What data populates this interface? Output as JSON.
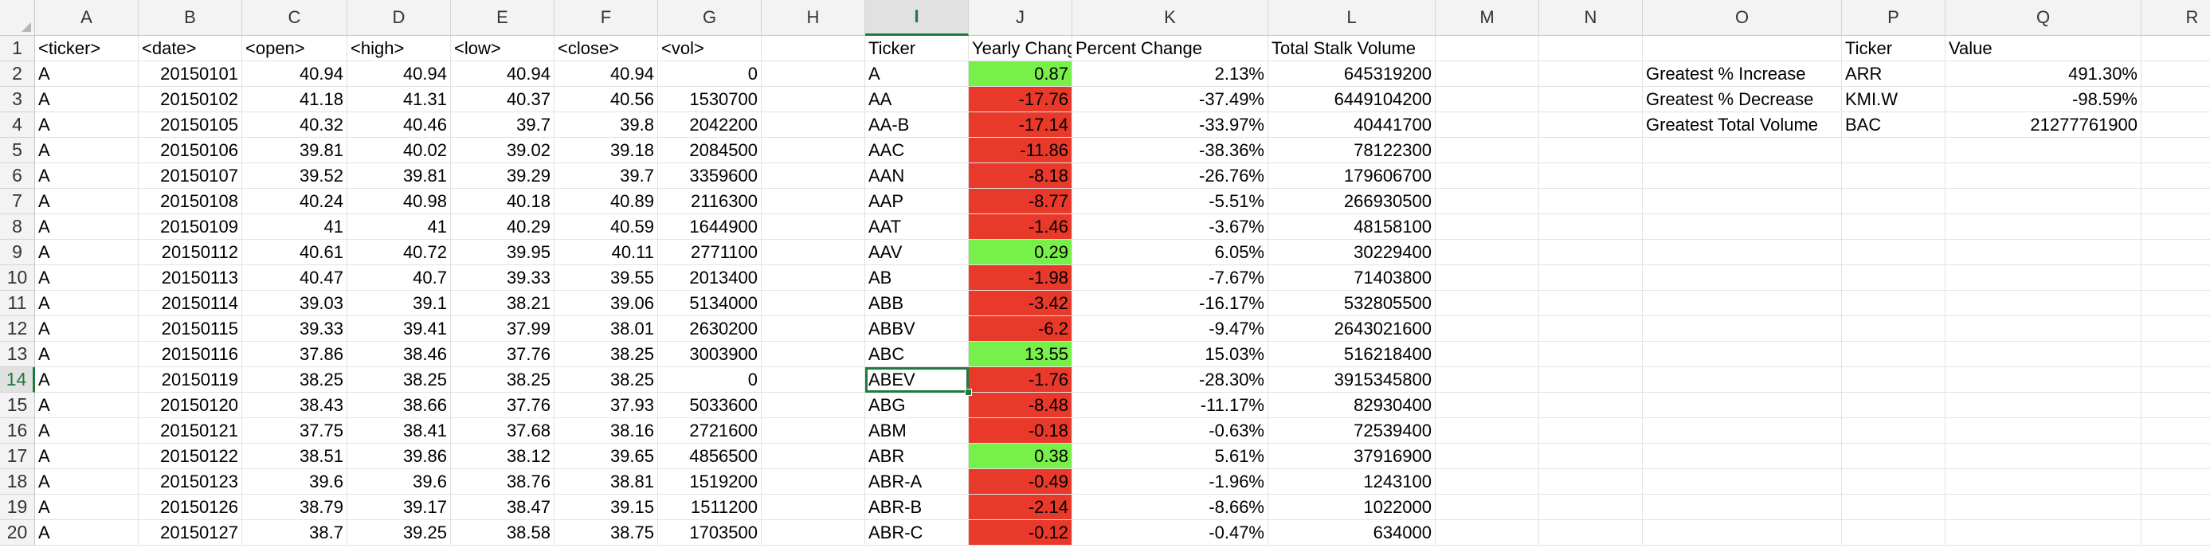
{
  "columns": [
    "A",
    "B",
    "C",
    "D",
    "E",
    "F",
    "G",
    "H",
    "I",
    "J",
    "K",
    "L",
    "M",
    "N",
    "O",
    "P",
    "Q",
    "R"
  ],
  "rows": [
    [
      "<ticker>",
      "<date>",
      "<open>",
      "<high>",
      "<low>",
      "<close>",
      "<vol>",
      "",
      "Ticker",
      "Yearly Change",
      "Percent Change",
      "Total Stalk Volume",
      "",
      "",
      "",
      "Ticker",
      "Value",
      ""
    ],
    [
      "A",
      "20150101",
      "40.94",
      "40.94",
      "40.94",
      "40.94",
      "0",
      "",
      "A",
      "0.87",
      "2.13%",
      "645319200",
      "",
      "",
      "Greatest % Increase",
      "ARR",
      "491.30%",
      ""
    ],
    [
      "A",
      "20150102",
      "41.18",
      "41.31",
      "40.37",
      "40.56",
      "1530700",
      "",
      "AA",
      "-17.76",
      "-37.49%",
      "6449104200",
      "",
      "",
      "Greatest % Decrease",
      "KMI.W",
      "-98.59%",
      ""
    ],
    [
      "A",
      "20150105",
      "40.32",
      "40.46",
      "39.7",
      "39.8",
      "2042200",
      "",
      "AA-B",
      "-17.14",
      "-33.97%",
      "40441700",
      "",
      "",
      "Greatest Total Volume",
      "BAC",
      "21277761900",
      ""
    ],
    [
      "A",
      "20150106",
      "39.81",
      "40.02",
      "39.02",
      "39.18",
      "2084500",
      "",
      "AAC",
      "-11.86",
      "-38.36%",
      "78122300",
      "",
      "",
      "",
      "",
      "",
      ""
    ],
    [
      "A",
      "20150107",
      "39.52",
      "39.81",
      "39.29",
      "39.7",
      "3359600",
      "",
      "AAN",
      "-8.18",
      "-26.76%",
      "179606700",
      "",
      "",
      "",
      "",
      "",
      ""
    ],
    [
      "A",
      "20150108",
      "40.24",
      "40.98",
      "40.18",
      "40.89",
      "2116300",
      "",
      "AAP",
      "-8.77",
      "-5.51%",
      "266930500",
      "",
      "",
      "",
      "",
      "",
      ""
    ],
    [
      "A",
      "20150109",
      "41",
      "41",
      "40.29",
      "40.59",
      "1644900",
      "",
      "AAT",
      "-1.46",
      "-3.67%",
      "48158100",
      "",
      "",
      "",
      "",
      "",
      ""
    ],
    [
      "A",
      "20150112",
      "40.61",
      "40.72",
      "39.95",
      "40.11",
      "2771100",
      "",
      "AAV",
      "0.29",
      "6.05%",
      "30229400",
      "",
      "",
      "",
      "",
      "",
      ""
    ],
    [
      "A",
      "20150113",
      "40.47",
      "40.7",
      "39.33",
      "39.55",
      "2013400",
      "",
      "AB",
      "-1.98",
      "-7.67%",
      "71403800",
      "",
      "",
      "",
      "",
      "",
      ""
    ],
    [
      "A",
      "20150114",
      "39.03",
      "39.1",
      "38.21",
      "39.06",
      "5134000",
      "",
      "ABB",
      "-3.42",
      "-16.17%",
      "532805500",
      "",
      "",
      "",
      "",
      "",
      ""
    ],
    [
      "A",
      "20150115",
      "39.33",
      "39.41",
      "37.99",
      "38.01",
      "2630200",
      "",
      "ABBV",
      "-6.2",
      "-9.47%",
      "2643021600",
      "",
      "",
      "",
      "",
      "",
      ""
    ],
    [
      "A",
      "20150116",
      "37.86",
      "38.46",
      "37.76",
      "38.25",
      "3003900",
      "",
      "ABC",
      "13.55",
      "15.03%",
      "516218400",
      "",
      "",
      "",
      "",
      "",
      ""
    ],
    [
      "A",
      "20150119",
      "38.25",
      "38.25",
      "38.25",
      "38.25",
      "0",
      "",
      "ABEV",
      "-1.76",
      "-28.30%",
      "3915345800",
      "",
      "",
      "",
      "",
      "",
      ""
    ],
    [
      "A",
      "20150120",
      "38.43",
      "38.66",
      "37.76",
      "37.93",
      "5033600",
      "",
      "ABG",
      "-8.48",
      "-11.17%",
      "82930400",
      "",
      "",
      "",
      "",
      "",
      ""
    ],
    [
      "A",
      "20150121",
      "37.75",
      "38.41",
      "37.68",
      "38.16",
      "2721600",
      "",
      "ABM",
      "-0.18",
      "-0.63%",
      "72539400",
      "",
      "",
      "",
      "",
      "",
      ""
    ],
    [
      "A",
      "20150122",
      "38.51",
      "39.86",
      "38.12",
      "39.65",
      "4856500",
      "",
      "ABR",
      "0.38",
      "5.61%",
      "37916900",
      "",
      "",
      "",
      "",
      "",
      ""
    ],
    [
      "A",
      "20150123",
      "39.6",
      "39.6",
      "38.76",
      "38.81",
      "1519200",
      "",
      "ABR-A",
      "-0.49",
      "-1.96%",
      "1243100",
      "",
      "",
      "",
      "",
      "",
      ""
    ],
    [
      "A",
      "20150126",
      "38.79",
      "39.17",
      "38.47",
      "39.15",
      "1511200",
      "",
      "ABR-B",
      "-2.14",
      "-8.66%",
      "1022000",
      "",
      "",
      "",
      "",
      "",
      ""
    ],
    [
      "A",
      "20150127",
      "38.7",
      "39.25",
      "38.58",
      "38.75",
      "1703500",
      "",
      "ABR-C",
      "-0.12",
      "-0.47%",
      "634000",
      "",
      "",
      "",
      "",
      "",
      ""
    ]
  ],
  "active_cell": {
    "row": 14,
    "col": "I"
  },
  "colors": {
    "positive_change": "#78f04a",
    "negative_change": "#e8392a",
    "selection": "#1f7a3d"
  }
}
